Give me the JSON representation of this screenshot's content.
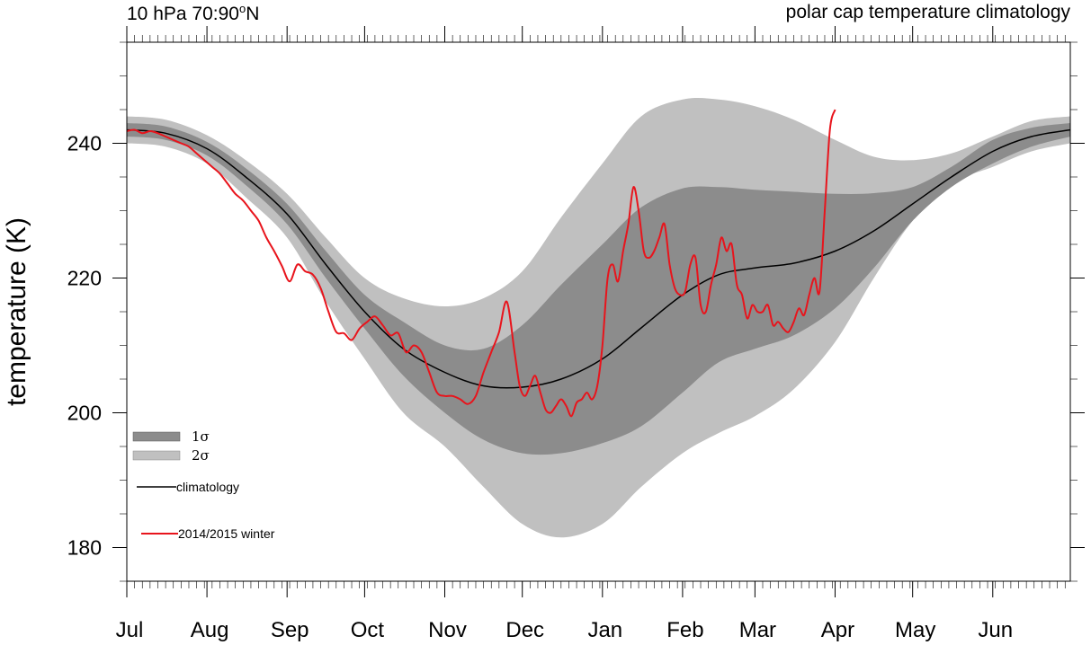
{
  "chart_data": {
    "type": "line",
    "title_left_main": "10 hPa 70:90",
    "title_left_sup": "o",
    "title_left_end": "N",
    "title_right": "polar cap temperature climatology",
    "xlabel": "",
    "ylabel": "temperature (K)",
    "xlim": [
      0,
      365
    ],
    "ylim": [
      175,
      255
    ],
    "yticks": [
      180,
      200,
      220,
      240
    ],
    "xticks": [
      {
        "day": 0,
        "label": "Jul"
      },
      {
        "day": 31,
        "label": "Aug"
      },
      {
        "day": 62,
        "label": "Sep"
      },
      {
        "day": 92,
        "label": "Oct"
      },
      {
        "day": 123,
        "label": "Nov"
      },
      {
        "day": 153,
        "label": "Dec"
      },
      {
        "day": 184,
        "label": "Jan"
      },
      {
        "day": 215,
        "label": "Feb"
      },
      {
        "day": 243,
        "label": "Mar"
      },
      {
        "day": 274,
        "label": "Apr"
      },
      {
        "day": 304,
        "label": "May"
      },
      {
        "day": 335,
        "label": "Jun"
      }
    ],
    "legend": {
      "band1": "1σ",
      "band2": "2σ",
      "climatology": "climatology",
      "winter": "2014/2015 winter"
    },
    "colors": {
      "band1": "#8c8c8c",
      "band2": "#c0c0c0",
      "climatology": "#000000",
      "winter": "#e8141c"
    },
    "climatology": {
      "x": [
        0,
        15,
        31,
        46,
        62,
        77,
        92,
        107,
        123,
        138,
        153,
        168,
        184,
        199,
        215,
        229,
        243,
        258,
        274,
        289,
        304,
        319,
        335,
        350,
        365
      ],
      "y": [
        242,
        241.5,
        239.2,
        235,
        229.5,
        222,
        215,
        209.5,
        206,
        204,
        203.8,
        205,
        208,
        212.6,
        217.5,
        220.5,
        221.5,
        222.2,
        224,
        227,
        231,
        235,
        238.8,
        241,
        242
      ]
    },
    "band_1sigma": {
      "upper": [
        243,
        242.5,
        240.2,
        236.3,
        231,
        224,
        217.5,
        213.5,
        210,
        209.5,
        213,
        219,
        225,
        230.5,
        233.3,
        233.5,
        233.1,
        232.8,
        232.5,
        232.6,
        233.5,
        236.5,
        240.5,
        242.3,
        243
      ],
      "lower": [
        241,
        240.5,
        238.2,
        233.8,
        228,
        220,
        212.5,
        205.5,
        200,
        196,
        194,
        194,
        195.5,
        198,
        203,
        207.5,
        209.5,
        211.5,
        215.5,
        221.5,
        228.5,
        233.5,
        237,
        239.5,
        241
      ]
    },
    "band_2sigma": {
      "upper": [
        244,
        243.5,
        241.2,
        237.5,
        232.5,
        226,
        220,
        217,
        215.8,
        217,
        221,
        229,
        237,
        244,
        246.5,
        246.5,
        245.5,
        243.5,
        240.5,
        238,
        237.5,
        238.5,
        241,
        243.3,
        244
      ],
      "lower": [
        240,
        239.5,
        237,
        232,
        226,
        216.5,
        208,
        200,
        195,
        189,
        183.5,
        181.5,
        183.5,
        189,
        194,
        197,
        199.5,
        203.5,
        210.5,
        220,
        228.5,
        234,
        236.5,
        238.8,
        240
      ]
    },
    "winter_2014_2015": {
      "x": [
        0,
        3,
        6,
        9,
        12,
        15,
        18,
        21,
        24,
        27,
        30,
        33,
        36,
        39,
        42,
        45,
        48,
        51,
        54,
        57,
        60,
        63,
        66,
        69,
        72,
        75,
        78,
        81,
        84,
        87,
        90,
        93,
        96,
        99,
        102,
        105,
        108,
        111,
        114,
        117,
        120,
        123,
        126,
        129,
        132,
        135,
        138,
        141,
        144,
        147,
        150,
        152,
        154,
        156,
        158,
        160,
        162,
        164,
        166,
        168,
        170,
        172,
        174,
        176,
        178,
        180,
        182,
        184,
        186,
        188,
        190,
        192,
        194,
        196,
        198,
        200,
        202,
        204,
        206,
        208,
        210,
        212,
        214,
        216,
        218,
        220,
        222,
        224,
        226,
        228,
        230,
        232,
        234,
        236,
        238,
        240,
        242,
        244,
        246,
        248,
        250,
        252,
        254,
        256,
        258,
        260,
        262,
        264,
        266,
        268,
        270,
        272,
        274
      ],
      "y": [
        241.8,
        242,
        241.5,
        241.8,
        241.5,
        241,
        240.5,
        240,
        239.5,
        238.5,
        237.5,
        236.5,
        235.5,
        234,
        232.5,
        231.5,
        230,
        228.5,
        226,
        224,
        221.8,
        219.5,
        222,
        221,
        220.5,
        218.5,
        215,
        212,
        211.8,
        210.8,
        212.5,
        213.5,
        214.3,
        213,
        211.5,
        211.8,
        209,
        210,
        209,
        206,
        203,
        202.5,
        202.5,
        202,
        201.3,
        202.5,
        206,
        209,
        212,
        216.5,
        209,
        204,
        202.5,
        204,
        205.5,
        203,
        200.5,
        200,
        201,
        202,
        201,
        199.5,
        201.5,
        202,
        203,
        202,
        204,
        210,
        220,
        222,
        219.5,
        224,
        228,
        233.5,
        230,
        224,
        223,
        224,
        226,
        228,
        222,
        218.5,
        217.5,
        218,
        222,
        223,
        216,
        215,
        219,
        222,
        226,
        224,
        225,
        219,
        217.5,
        214,
        216,
        215,
        215,
        216,
        213,
        213.5,
        212.5,
        212,
        213.5,
        215.5,
        214.5,
        217.5,
        220,
        218,
        230,
        242,
        245
      ]
    }
  }
}
